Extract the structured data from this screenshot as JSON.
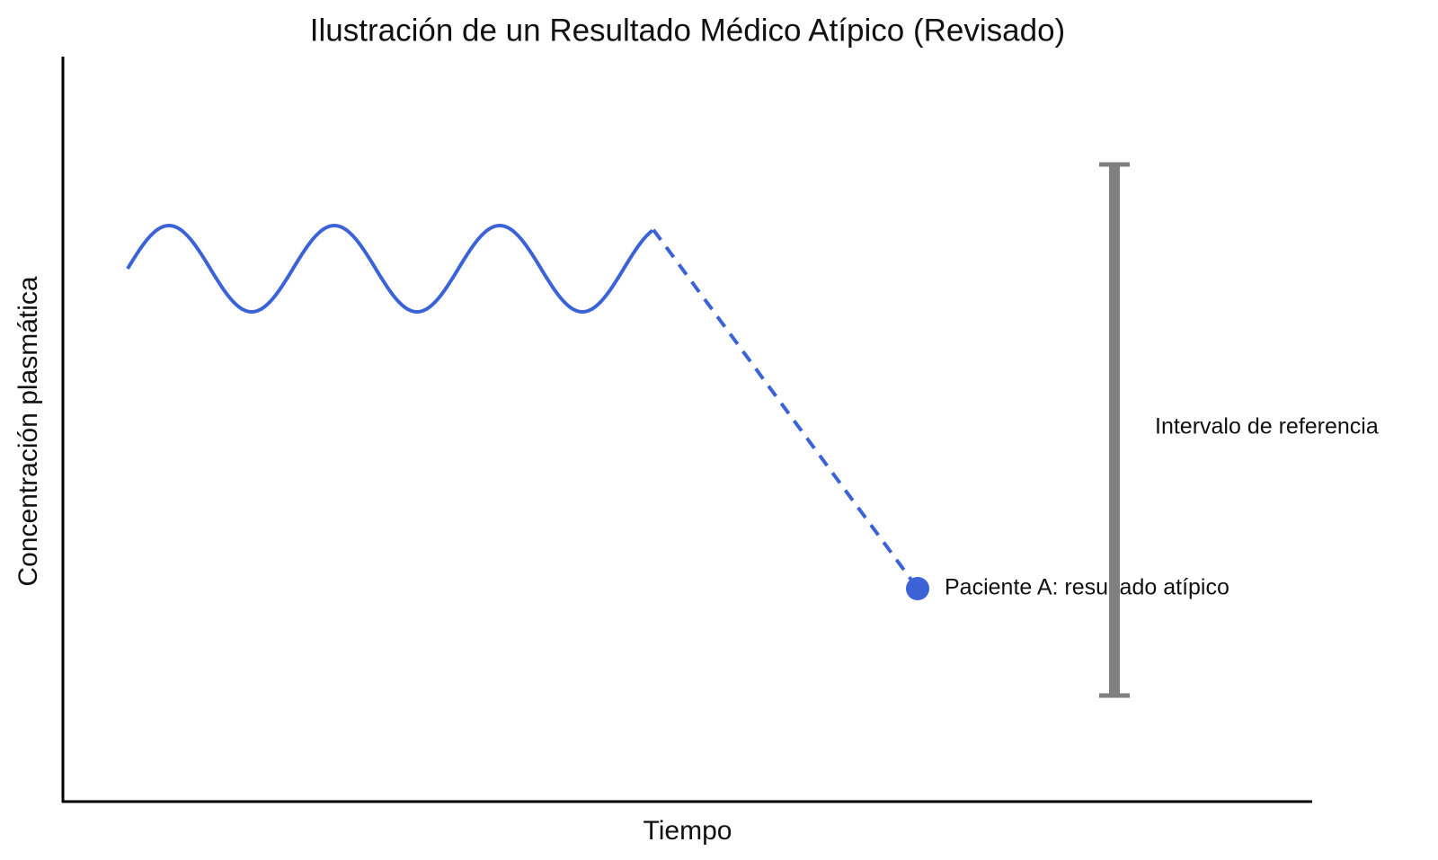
{
  "title": "Ilustración de un Resultado Médico Atípico (Revisado)",
  "x_axis_label": "Tiempo",
  "y_axis_label": "Concentración plasmática",
  "annotations": {
    "reference_interval": "Intervalo de referencia",
    "patient": "Paciente A: resultado atípico"
  }
}
